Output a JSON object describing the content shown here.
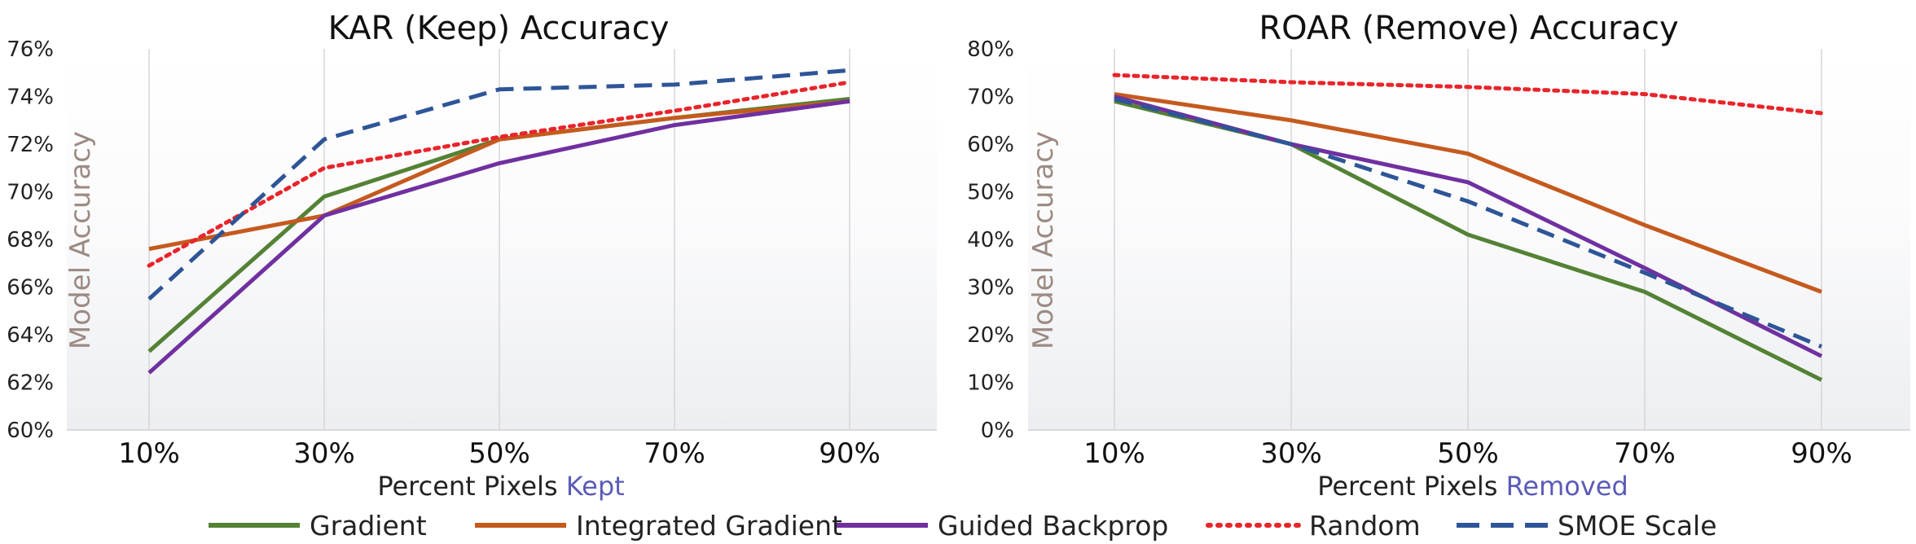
{
  "chart_data": [
    {
      "type": "line",
      "title": "KAR (Keep) Accuracy",
      "xlabel_prefix": "Percent Pixels",
      "xlabel_highlight": "Kept",
      "ylabel": "Model Accuracy",
      "categories": [
        "10%",
        "30%",
        "50%",
        "70%",
        "90%"
      ],
      "ylim": [
        60,
        76
      ],
      "yticks": [
        60,
        62,
        64,
        66,
        68,
        70,
        72,
        74,
        76
      ],
      "ytick_labels": [
        "60%",
        "62%",
        "64%",
        "66%",
        "68%",
        "70%",
        "72%",
        "74%",
        "76%"
      ],
      "grid": "vertical",
      "series": [
        {
          "name": "Gradient",
          "values": [
            63.3,
            69.8,
            72.2,
            73.1,
            73.9
          ]
        },
        {
          "name": "Integrated Gradient",
          "values": [
            67.6,
            69.0,
            72.2,
            73.1,
            73.8
          ]
        },
        {
          "name": "Guided Backprop",
          "values": [
            62.4,
            69.0,
            71.2,
            72.8,
            73.8
          ]
        },
        {
          "name": "Random",
          "values": [
            66.9,
            71.0,
            72.3,
            73.4,
            74.6
          ]
        },
        {
          "name": "SMOE Scale",
          "values": [
            65.5,
            72.2,
            74.3,
            74.5,
            75.1
          ]
        }
      ]
    },
    {
      "type": "line",
      "title": "ROAR (Remove) Accuracy",
      "xlabel_prefix": "Percent Pixels",
      "xlabel_highlight": "Removed",
      "ylabel": "Model Accuracy",
      "categories": [
        "10%",
        "30%",
        "50%",
        "70%",
        "90%"
      ],
      "ylim": [
        0,
        80
      ],
      "yticks": [
        0,
        10,
        20,
        30,
        40,
        50,
        60,
        70,
        80
      ],
      "ytick_labels": [
        "0%",
        "10%",
        "20%",
        "30%",
        "40%",
        "50%",
        "60%",
        "70%",
        "80%"
      ],
      "grid": "vertical",
      "series": [
        {
          "name": "Gradient",
          "values": [
            69.0,
            60.0,
            41.0,
            29.0,
            10.5
          ]
        },
        {
          "name": "Integrated Gradient",
          "values": [
            70.5,
            65.0,
            58.0,
            43.0,
            29.0
          ]
        },
        {
          "name": "Guided Backprop",
          "values": [
            70.0,
            60.0,
            52.0,
            34.0,
            15.5
          ]
        },
        {
          "name": "Random",
          "values": [
            74.5,
            73.0,
            72.0,
            70.5,
            66.5
          ]
        },
        {
          "name": "SMOE Scale",
          "values": [
            69.5,
            60.0,
            48.0,
            33.0,
            17.5
          ]
        }
      ]
    }
  ],
  "legend": {
    "placement": "bottom",
    "items": [
      {
        "name": "Gradient",
        "color": "#548235",
        "dash": "solid"
      },
      {
        "name": "Integrated Gradient",
        "color": "#c55a1e",
        "dash": "solid"
      },
      {
        "name": "Guided Backprop",
        "color": "#7030a0",
        "dash": "solid"
      },
      {
        "name": "Random",
        "color": "#e8252b",
        "dash": "dotted"
      },
      {
        "name": "SMOE Scale",
        "color": "#2e5597",
        "dash": "dashed"
      }
    ]
  }
}
